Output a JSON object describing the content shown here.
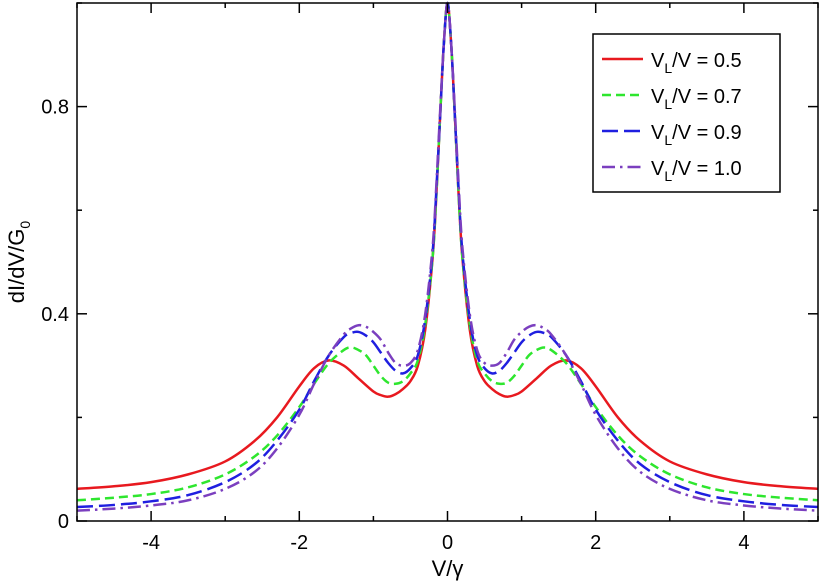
{
  "chart_data": {
    "type": "line",
    "xlabel": "V/γ",
    "ylabel": {
      "main": "dI/dV/G",
      "sub": "0"
    },
    "xlim": [
      -5,
      5
    ],
    "ylim": [
      0,
      1.0
    ],
    "x_ticks": [
      -4,
      -2,
      0,
      2,
      4
    ],
    "y_ticks": [
      0,
      0.4,
      0.8
    ],
    "x_tick_labels": [
      "-4",
      "-2",
      "0",
      "2",
      "4"
    ],
    "y_tick_labels": [
      "0",
      "0.4",
      "0.8"
    ],
    "grid": false,
    "legend_position": "top-right",
    "series": [
      {
        "name": {
          "pre": "V",
          "sub": "L",
          "post": "/V = 0.5"
        },
        "color": "#e8191f",
        "dash": "solid",
        "x": [
          0,
          0.05,
          0.1,
          0.15,
          0.2,
          0.3,
          0.4,
          0.5,
          0.6,
          0.7,
          0.8,
          0.9,
          1.0,
          1.2,
          1.4,
          1.6,
          1.8,
          2.0,
          2.3,
          2.6,
          3.0,
          3.5,
          4.0,
          4.5,
          5.0
        ],
        "y": [
          1.0,
          0.92,
          0.78,
          0.63,
          0.51,
          0.37,
          0.3,
          0.27,
          0.255,
          0.245,
          0.24,
          0.243,
          0.25,
          0.275,
          0.3,
          0.31,
          0.295,
          0.26,
          0.2,
          0.155,
          0.115,
          0.09,
          0.075,
          0.067,
          0.062
        ]
      },
      {
        "name": {
          "pre": "V",
          "sub": "L",
          "post": "/V = 0.7"
        },
        "color": "#2ee62e",
        "dash": "dashed",
        "x": [
          0,
          0.05,
          0.1,
          0.15,
          0.2,
          0.3,
          0.4,
          0.5,
          0.6,
          0.7,
          0.8,
          0.9,
          1.0,
          1.1,
          1.2,
          1.3,
          1.4,
          1.6,
          1.8,
          2.0,
          2.3,
          2.6,
          3.0,
          3.5,
          4.0,
          4.5,
          5.0
        ],
        "y": [
          1.0,
          0.92,
          0.78,
          0.63,
          0.51,
          0.38,
          0.31,
          0.285,
          0.27,
          0.265,
          0.267,
          0.28,
          0.3,
          0.32,
          0.33,
          0.335,
          0.33,
          0.305,
          0.265,
          0.22,
          0.165,
          0.125,
          0.09,
          0.065,
          0.052,
          0.045,
          0.04
        ]
      },
      {
        "name": {
          "pre": "V",
          "sub": "L",
          "post": "/V = 0.9"
        },
        "color": "#1f1fe0",
        "dash": "longdash",
        "x": [
          0,
          0.05,
          0.1,
          0.15,
          0.2,
          0.3,
          0.4,
          0.5,
          0.6,
          0.7,
          0.8,
          0.9,
          1.0,
          1.1,
          1.2,
          1.3,
          1.4,
          1.6,
          1.8,
          2.0,
          2.3,
          2.6,
          3.0,
          3.5,
          4.0,
          4.5,
          5.0
        ],
        "y": [
          1.0,
          0.92,
          0.78,
          0.64,
          0.52,
          0.39,
          0.32,
          0.295,
          0.285,
          0.29,
          0.305,
          0.325,
          0.345,
          0.358,
          0.365,
          0.363,
          0.355,
          0.32,
          0.27,
          0.215,
          0.155,
          0.11,
          0.075,
          0.05,
          0.038,
          0.031,
          0.027
        ]
      },
      {
        "name": {
          "pre": "V",
          "sub": "L",
          "post": "/V = 1.0"
        },
        "color": "#7b3fbf",
        "dash": "dashdot",
        "x": [
          0,
          0.05,
          0.1,
          0.15,
          0.2,
          0.3,
          0.4,
          0.5,
          0.6,
          0.7,
          0.8,
          0.9,
          1.0,
          1.1,
          1.2,
          1.3,
          1.4,
          1.6,
          1.8,
          2.0,
          2.3,
          2.6,
          3.0,
          3.5,
          4.0,
          4.5,
          5.0
        ],
        "y": [
          1.0,
          0.92,
          0.79,
          0.65,
          0.53,
          0.4,
          0.33,
          0.305,
          0.3,
          0.305,
          0.325,
          0.35,
          0.365,
          0.375,
          0.378,
          0.372,
          0.36,
          0.32,
          0.265,
          0.205,
          0.14,
          0.095,
          0.062,
          0.04,
          0.03,
          0.024,
          0.02
        ]
      }
    ]
  }
}
